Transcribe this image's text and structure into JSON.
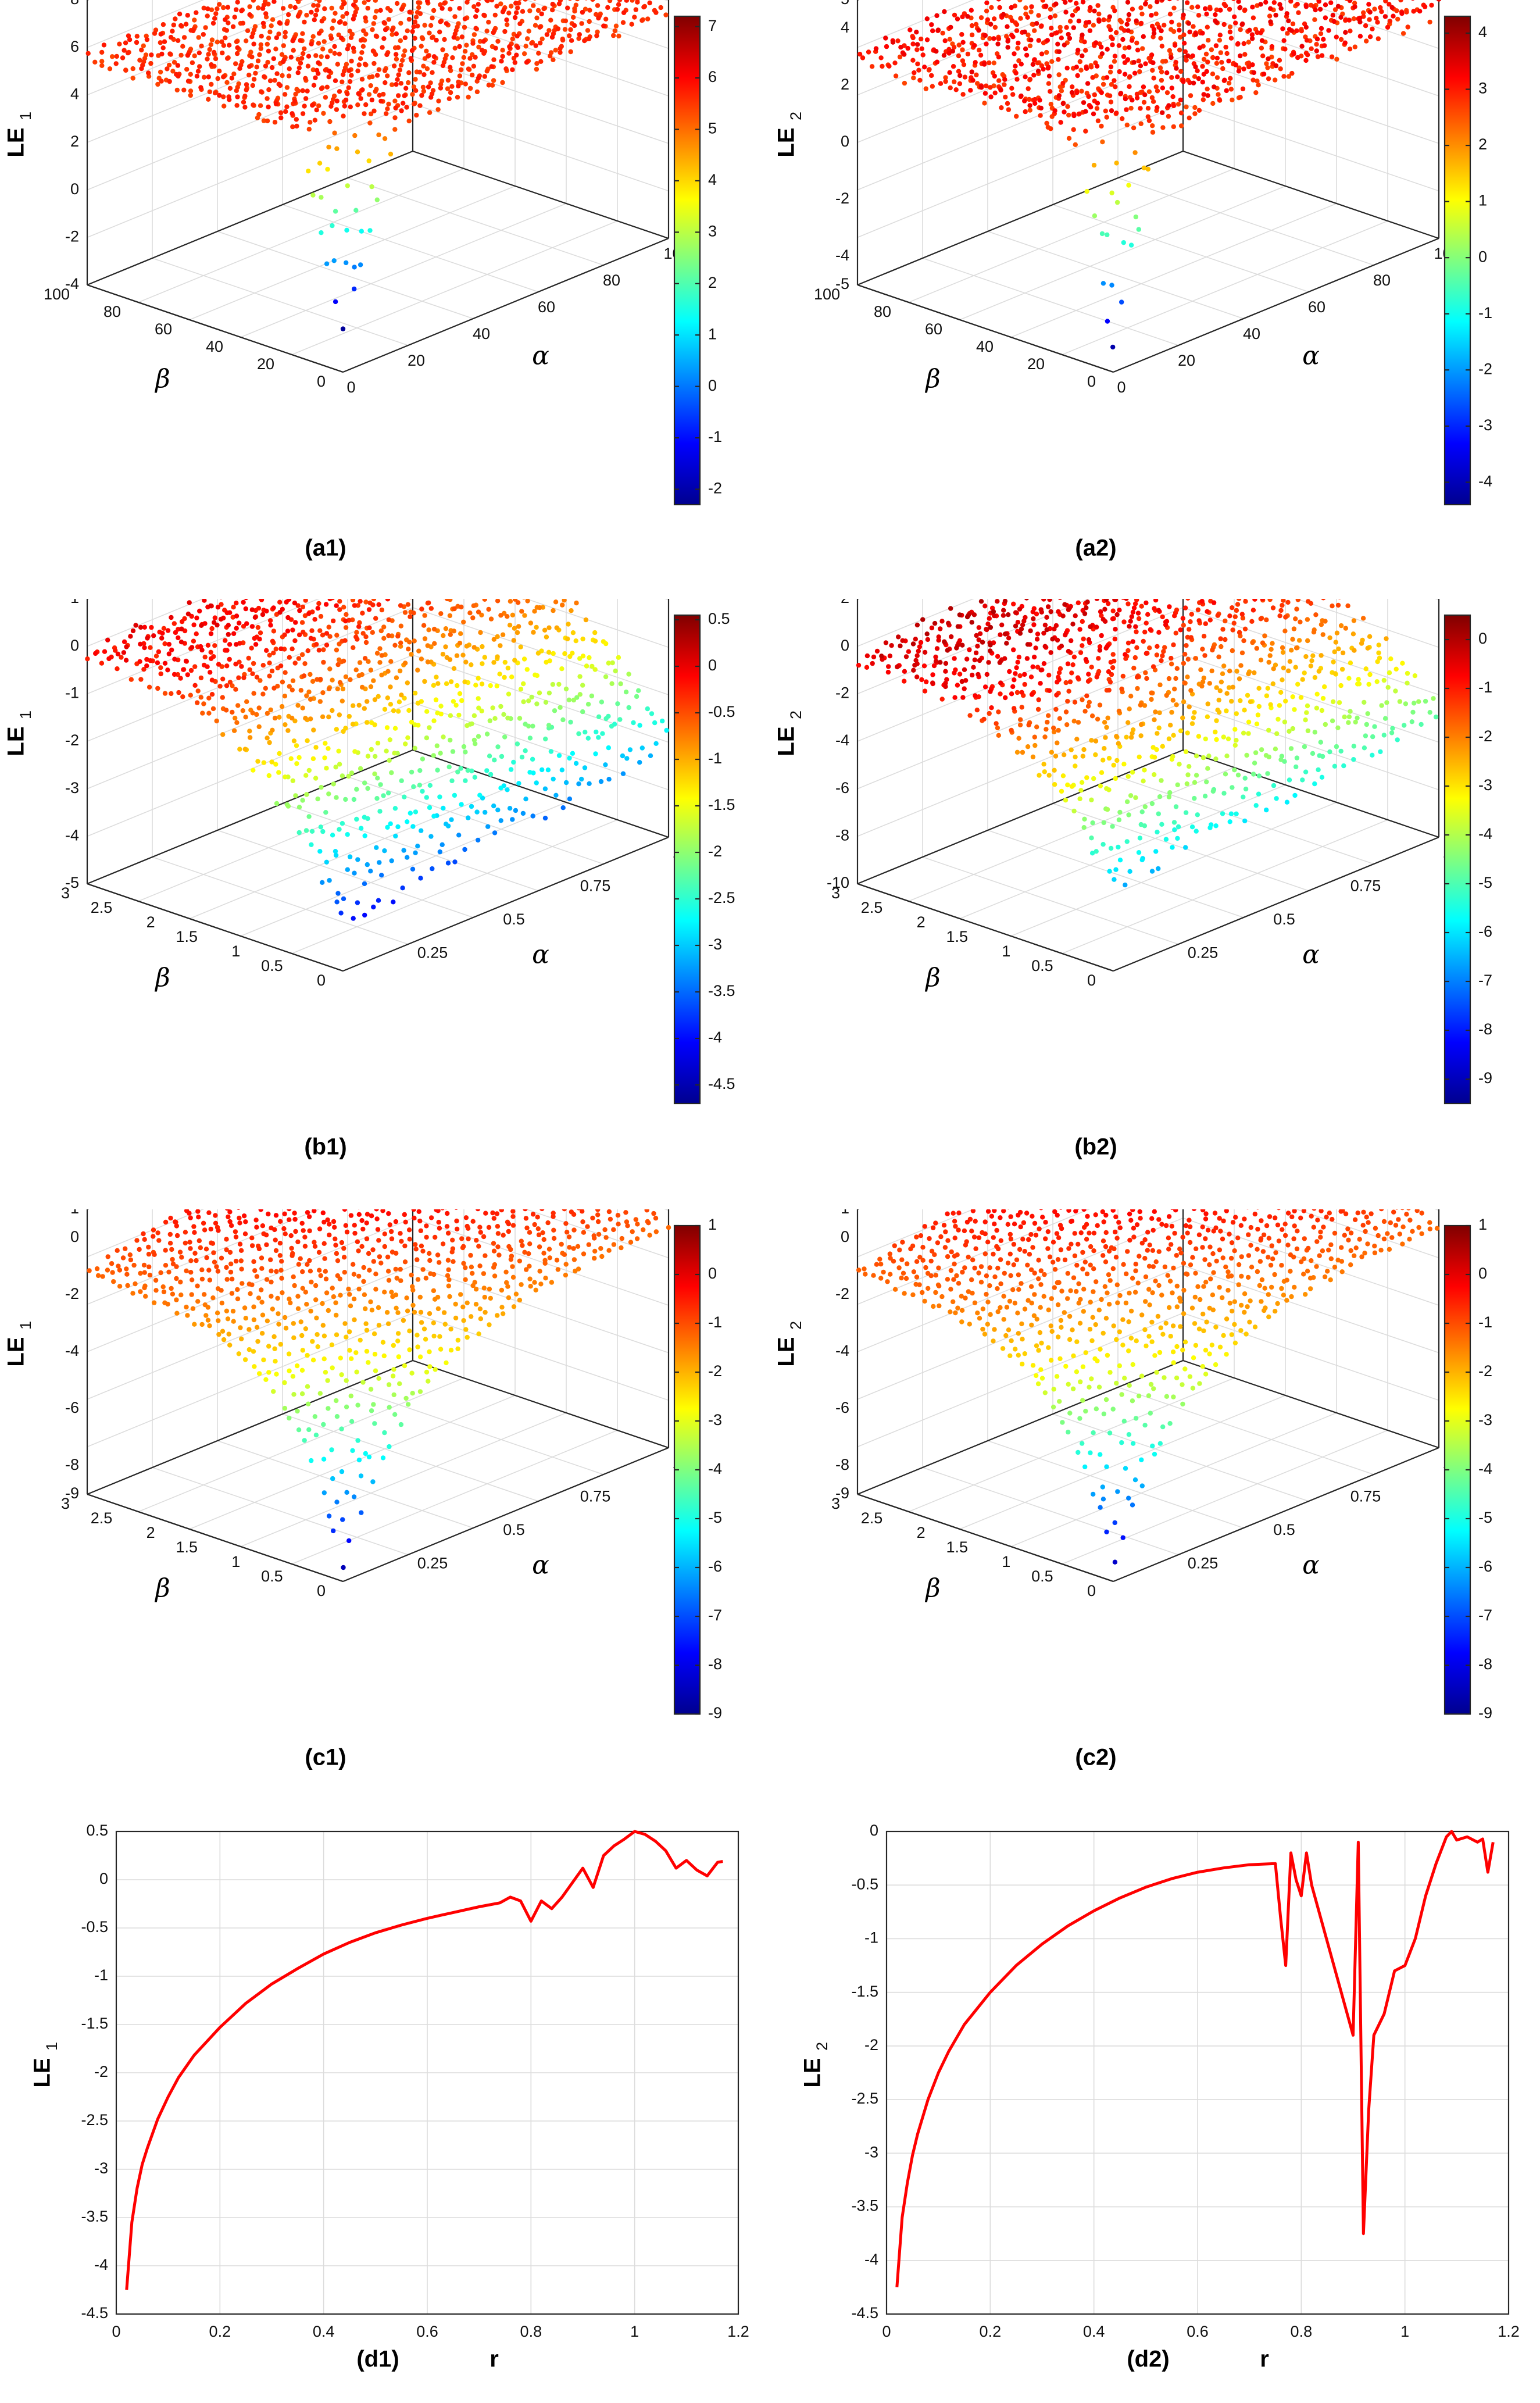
{
  "colormap": [
    "#00008f",
    "#0000ff",
    "#00ffff",
    "#ffff00",
    "#ff0000",
    "#800000"
  ],
  "chart_data": [
    {
      "id": "a1",
      "type": "scatter",
      "subtype": "3d-surface-scatter",
      "label": "(a1)",
      "zlabel_main": "LE",
      "zlabel_sub": "1",
      "xlabel": "α",
      "ylabel": "β",
      "xlim": [
        0,
        100
      ],
      "ylim": [
        0,
        100
      ],
      "zlim": [
        -4,
        8
      ],
      "xticks": [
        "0",
        "20",
        "40",
        "60",
        "80",
        "100"
      ],
      "yticks": [
        "0",
        "20",
        "40",
        "60",
        "80",
        "100"
      ],
      "zticks": [
        "-4",
        "-2",
        "0",
        "2",
        "4",
        "6",
        "8"
      ],
      "colorbar": {
        "min": -2.3,
        "max": 7.2,
        "ticks": [
          "-2",
          "-1",
          "0",
          "1",
          "2",
          "3",
          "4",
          "5",
          "6",
          "7"
        ]
      },
      "surface": {
        "level": 5.6,
        "tilt_a": 0.006,
        "tilt_b": 0.004,
        "ripple": 0.5
      },
      "dip": {
        "z": -2.3,
        "width": 0.12
      }
    },
    {
      "id": "a2",
      "type": "scatter",
      "subtype": "3d-surface-scatter",
      "label": "(a2)",
      "zlabel_main": "LE",
      "zlabel_sub": "2",
      "xlabel": "α",
      "ylabel": "β",
      "xlim": [
        0,
        100
      ],
      "ylim": [
        0,
        100
      ],
      "zlim": [
        -5,
        5
      ],
      "xticks": [
        "0",
        "20",
        "40",
        "60",
        "80",
        "100"
      ],
      "yticks": [
        "0",
        "20",
        "40",
        "60",
        "80",
        "100"
      ],
      "zticks": [
        "-5",
        "-4",
        "-2",
        "0",
        "2",
        "4",
        "5"
      ],
      "colorbar": {
        "min": -4.4,
        "max": 4.3,
        "ticks": [
          "-4",
          "-3",
          "-2",
          "-1",
          "0",
          "1",
          "2",
          "3",
          "4"
        ]
      },
      "surface": {
        "level": 3.0,
        "tilt_a": 0.012,
        "tilt_b": 0.01,
        "ripple": 0.8
      },
      "dip": {
        "z": -4.2,
        "width": 0.1
      }
    },
    {
      "id": "b1",
      "type": "scatter",
      "subtype": "3d-surface-scatter",
      "label": "(b1)",
      "zlabel_main": "LE",
      "zlabel_sub": "1",
      "xlabel": "α",
      "ylabel": "β",
      "xlim": [
        0,
        1
      ],
      "ylim": [
        0,
        3
      ],
      "zlim": [
        -5,
        1
      ],
      "xticks": [
        "0.25",
        "0.5",
        "0.75",
        "1"
      ],
      "yticks": [
        "0",
        "0.5",
        "1",
        "1.5",
        "2",
        "2.5",
        "3"
      ],
      "zticks": [
        "-5",
        "-4",
        "-3",
        "-2",
        "-1",
        "0",
        "1"
      ],
      "colorbar": {
        "min": -4.7,
        "max": 0.55,
        "ticks": [
          "-4.5",
          "-4",
          "-3.5",
          "-3",
          "-2.5",
          "-2",
          "-1.5",
          "-1",
          "-0.5",
          "0",
          "0.5"
        ]
      },
      "surface": {
        "level": -0.2,
        "tilt_a": -3.8,
        "tilt_b": 0.0,
        "ripple": 0.4
      },
      "dip": {
        "z": -4.6,
        "width": 0.15
      }
    },
    {
      "id": "b2",
      "type": "scatter",
      "subtype": "3d-surface-scatter",
      "label": "(b2)",
      "zlabel_main": "LE",
      "zlabel_sub": "2",
      "xlabel": "α",
      "ylabel": "β",
      "xlim": [
        0,
        1
      ],
      "ylim": [
        0,
        3
      ],
      "zlim": [
        -10,
        2
      ],
      "xticks": [
        "0.25",
        "0.5",
        "0.75",
        "1"
      ],
      "yticks": [
        "0",
        "0.5",
        "1",
        "1.5",
        "2",
        "2.5",
        "3"
      ],
      "zticks": [
        "-10",
        "-8",
        "-6",
        "-4",
        "-2",
        "0",
        "2"
      ],
      "colorbar": {
        "min": -9.5,
        "max": 0.5,
        "ticks": [
          "-9",
          "-8",
          "-7",
          "-6",
          "-5",
          "-4",
          "-3",
          "-2",
          "-1",
          "0"
        ]
      },
      "surface": {
        "level": -0.5,
        "tilt_a": -6.0,
        "tilt_b": 0.0,
        "ripple": 0.8
      },
      "dip": {
        "z": -9.2,
        "width": 0.15
      }
    },
    {
      "id": "c1",
      "type": "scatter",
      "subtype": "3d-surface-scatter",
      "label": "(c1)",
      "zlabel_main": "LE",
      "zlabel_sub": "1",
      "xlabel": "α",
      "ylabel": "β",
      "xlim": [
        0,
        1
      ],
      "ylim": [
        0,
        3
      ],
      "zlim": [
        -9,
        1
      ],
      "xticks": [
        "0.25",
        "0.5",
        "0.75",
        "1"
      ],
      "yticks": [
        "0",
        "0.5",
        "1",
        "1.5",
        "2",
        "2.5",
        "3"
      ],
      "zticks": [
        "-9",
        "-8",
        "-6",
        "-4",
        "-2",
        "0",
        "1"
      ],
      "colorbar": {
        "min": -9,
        "max": 1,
        "ticks": [
          "-9",
          "-8",
          "-7",
          "-6",
          "-5",
          "-4",
          "-3",
          "-2",
          "-1",
          "0",
          "1"
        ]
      },
      "surface": {
        "level": 0.3,
        "tilt_a": -2.5,
        "tilt_b": -2.5,
        "ripple": 0.2
      },
      "dip": {
        "z": -9,
        "width": 0.1
      }
    },
    {
      "id": "c2",
      "type": "scatter",
      "subtype": "3d-surface-scatter",
      "label": "(c2)",
      "zlabel_main": "LE",
      "zlabel_sub": "2",
      "xlabel": "α",
      "ylabel": "β",
      "xlim": [
        0,
        1
      ],
      "ylim": [
        0,
        3
      ],
      "zlim": [
        -9,
        1
      ],
      "xticks": [
        "0.25",
        "0.5",
        "0.75",
        "1"
      ],
      "yticks": [
        "0",
        "0.5",
        "1",
        "1.5",
        "2",
        "2.5",
        "3"
      ],
      "zticks": [
        "-9",
        "-8",
        "-6",
        "-4",
        "-2",
        "0",
        "1"
      ],
      "colorbar": {
        "min": -9,
        "max": 1,
        "ticks": [
          "-9",
          "-8",
          "-7",
          "-6",
          "-5",
          "-4",
          "-3",
          "-2",
          "-1",
          "0",
          "1"
        ]
      },
      "surface": {
        "level": 0.3,
        "tilt_a": -2.5,
        "tilt_b": -2.5,
        "ripple": 0.2
      },
      "dip": {
        "z": -9,
        "width": 0.1
      }
    },
    {
      "id": "d1",
      "type": "line",
      "label": "(d1)",
      "ylabel_main": "LE",
      "ylabel_sub": "1",
      "xlabel": "r",
      "xlim": [
        0,
        1.2
      ],
      "ylim": [
        -4.5,
        0.5
      ],
      "xticks": [
        "0",
        "0.2",
        "0.4",
        "0.6",
        "0.8",
        "1",
        "1.2"
      ],
      "yticks": [
        "-4.5",
        "-4",
        "-3.5",
        "-3",
        "-2.5",
        "-2",
        "-1.5",
        "-1",
        "-0.5",
        "0",
        "0.5"
      ],
      "grid": true,
      "series": [
        {
          "name": "LE1",
          "color": "#ff0000",
          "x": [
            0.02,
            0.03,
            0.04,
            0.05,
            0.06,
            0.08,
            0.1,
            0.12,
            0.15,
            0.2,
            0.25,
            0.3,
            0.35,
            0.4,
            0.45,
            0.5,
            0.55,
            0.6,
            0.65,
            0.7,
            0.74,
            0.76,
            0.78,
            0.8,
            0.82,
            0.84,
            0.86,
            0.9,
            0.92,
            0.94,
            0.96,
            0.98,
            1.0,
            1.02,
            1.04,
            1.06,
            1.08,
            1.1,
            1.12,
            1.14,
            1.16,
            1.17
          ],
          "y": [
            -4.25,
            -3.55,
            -3.2,
            -2.95,
            -2.78,
            -2.48,
            -2.25,
            -2.05,
            -1.82,
            -1.53,
            -1.28,
            -1.08,
            -0.92,
            -0.77,
            -0.65,
            -0.55,
            -0.47,
            -0.4,
            -0.34,
            -0.28,
            -0.24,
            -0.18,
            -0.22,
            -0.43,
            -0.22,
            -0.3,
            -0.18,
            0.12,
            -0.08,
            0.25,
            0.35,
            0.42,
            0.5,
            0.47,
            0.4,
            0.3,
            0.12,
            0.2,
            0.1,
            0.04,
            0.18,
            0.19
          ]
        }
      ]
    },
    {
      "id": "d2",
      "type": "line",
      "label": "(d2)",
      "ylabel_main": "LE",
      "ylabel_sub": "2",
      "xlabel": "r",
      "xlim": [
        0,
        1.2
      ],
      "ylim": [
        -4.5,
        0
      ],
      "xticks": [
        "0",
        "0.2",
        "0.4",
        "0.6",
        "0.8",
        "1",
        "1.2"
      ],
      "yticks": [
        "-4.5",
        "-4",
        "-3.5",
        "-3",
        "-2.5",
        "-2",
        "-1.5",
        "-1",
        "-0.5",
        "0"
      ],
      "grid": true,
      "series": [
        {
          "name": "LE2",
          "color": "#ff0000",
          "x": [
            0.02,
            0.03,
            0.04,
            0.05,
            0.06,
            0.08,
            0.1,
            0.12,
            0.15,
            0.2,
            0.25,
            0.3,
            0.35,
            0.4,
            0.45,
            0.5,
            0.55,
            0.6,
            0.65,
            0.7,
            0.75,
            0.76,
            0.77,
            0.78,
            0.79,
            0.8,
            0.81,
            0.82,
            0.9,
            0.91,
            0.92,
            0.93,
            0.94,
            0.96,
            0.98,
            1.0,
            1.02,
            1.04,
            1.06,
            1.08,
            1.09,
            1.1,
            1.12,
            1.14,
            1.15,
            1.16,
            1.17
          ],
          "y": [
            -4.25,
            -3.6,
            -3.28,
            -3.02,
            -2.82,
            -2.5,
            -2.25,
            -2.05,
            -1.8,
            -1.5,
            -1.25,
            -1.05,
            -0.88,
            -0.74,
            -0.62,
            -0.52,
            -0.44,
            -0.38,
            -0.34,
            -0.31,
            -0.3,
            -0.8,
            -1.25,
            -0.2,
            -0.45,
            -0.6,
            -0.2,
            -0.5,
            -1.9,
            -0.1,
            -3.75,
            -2.6,
            -1.9,
            -1.7,
            -1.3,
            -1.25,
            -1.0,
            -0.6,
            -0.3,
            -0.05,
            0.0,
            -0.08,
            -0.05,
            -0.1,
            -0.07,
            -0.38,
            -0.1
          ]
        }
      ]
    }
  ]
}
